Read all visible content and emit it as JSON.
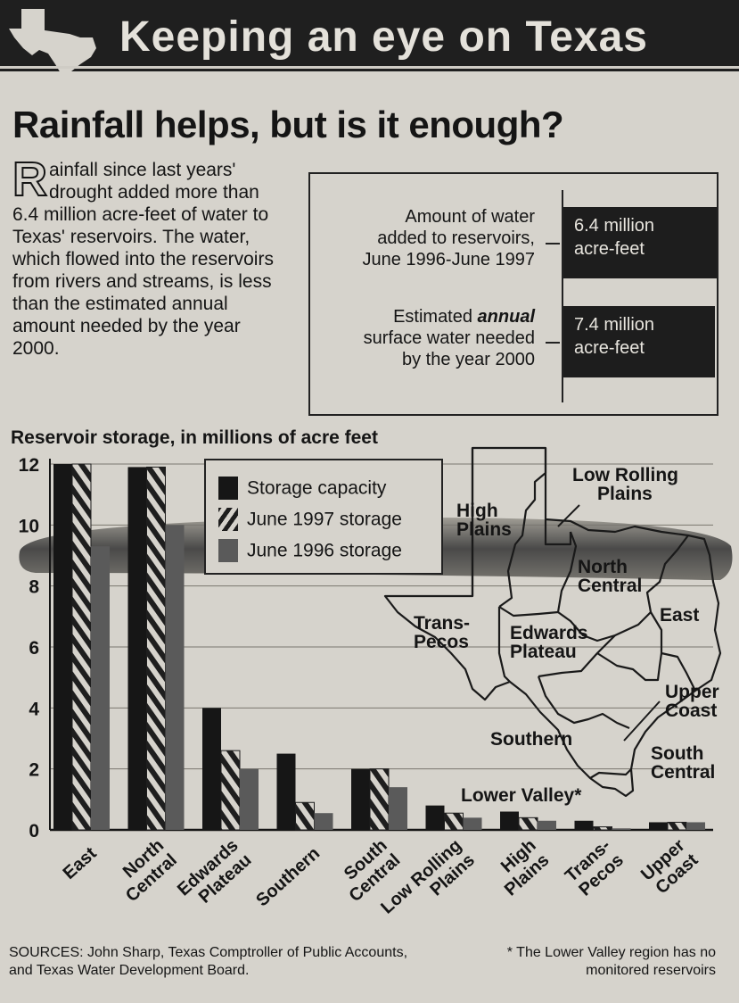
{
  "banner": {
    "title": "Keeping an eye on Texas"
  },
  "headline": "Rainfall helps, but is it enough?",
  "intro": {
    "dropcap": "R",
    "text": "ainfall since last years' drought added more than 6.4 million acre-feet of water to Texas' reservoirs. The water, which flowed into the reservoirs from rivers and streams, is less than the estimated annual amount needed by the year 2000."
  },
  "comparison": {
    "added_label_line1": "Amount of water",
    "added_label_line2": "added to reservoirs,",
    "added_label_line3": "June 1996-June 1997",
    "added_value_line1": "6.4 million",
    "added_value_line2": "acre-feet",
    "needed_label_line1a": "Estimated ",
    "needed_label_line1b": "annual",
    "needed_label_line2": "surface water needed",
    "needed_label_line3": "by the year 2000",
    "needed_value_line1": "7.4 million",
    "needed_value_line2": "acre-feet"
  },
  "map_labels": {
    "high_plains_1": "High",
    "high_plains_2": "Plains",
    "low_rolling_1": "Low Rolling",
    "low_rolling_2": "Plains",
    "north_central_1": "North",
    "north_central_2": "Central",
    "east": "East",
    "trans_pecos_1": "Trans-",
    "trans_pecos_2": "Pecos",
    "edwards_1": "Edwards",
    "edwards_2": "Plateau",
    "upper_coast_1": "Upper",
    "upper_coast_2": "Coast",
    "southern": "Southern",
    "south_central_1": "South",
    "south_central_2": "Central",
    "lower_valley": "Lower Valley*"
  },
  "sources": "SOURCES: John Sharp, Texas Comptroller of Public Accounts, and Texas Water Development Board.",
  "footnote": "* The Lower Valley region has no monitored reservoirs",
  "colors": {
    "capacity": "#161616",
    "june1997": "#1e1e1e",
    "june1996": "#5a5a5a",
    "background": "#d6d3cc"
  },
  "chart_data": {
    "type": "bar",
    "title": "Reservoir storage, in millions of acre feet",
    "categories": [
      [
        "East"
      ],
      [
        "North",
        "Central"
      ],
      [
        "Edwards",
        "Plateau"
      ],
      [
        "Southern"
      ],
      [
        "South",
        "Central"
      ],
      [
        "Low Rolling",
        "Plains"
      ],
      [
        "High",
        "Plains"
      ],
      [
        "Trans-",
        "Pecos"
      ],
      [
        "Upper",
        "Coast"
      ]
    ],
    "series": [
      {
        "name": "Storage capacity",
        "pattern": "solid",
        "values": [
          12.0,
          11.9,
          4.0,
          2.5,
          2.0,
          0.8,
          0.6,
          0.3,
          0.25
        ]
      },
      {
        "name": "June 1997 storage",
        "pattern": "hatched",
        "values": [
          12.0,
          11.9,
          2.6,
          0.9,
          2.0,
          0.55,
          0.4,
          0.1,
          0.25
        ]
      },
      {
        "name": "June 1996 storage",
        "pattern": "gray",
        "values": [
          9.3,
          10.0,
          2.0,
          0.55,
          1.4,
          0.4,
          0.3,
          0.05,
          0.25
        ]
      }
    ],
    "yticks": [
      0,
      2,
      4,
      6,
      8,
      10,
      12
    ],
    "ylim": [
      0,
      12
    ],
    "grid": true,
    "legend_position": "top-left"
  }
}
